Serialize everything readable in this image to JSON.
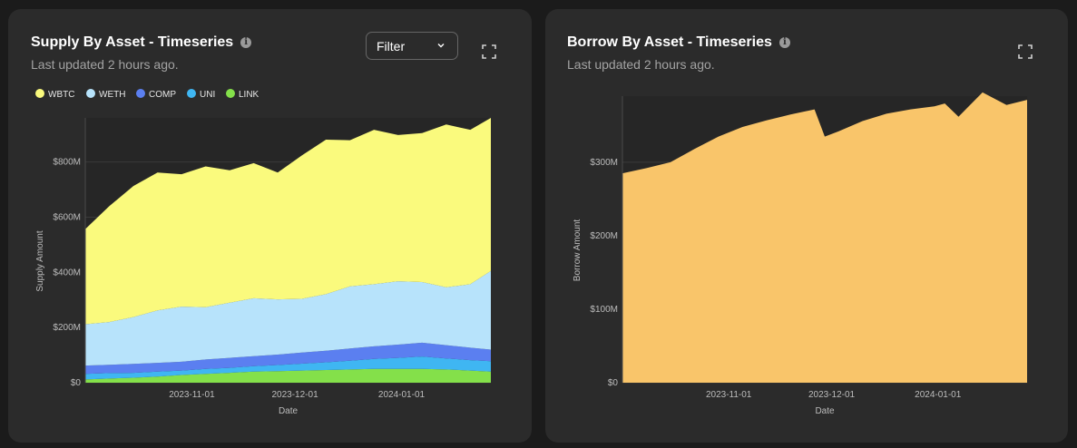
{
  "supply": {
    "title": "Supply By Asset - Timeseries",
    "subtitle": "Last updated 2 hours ago.",
    "filter_label": "Filter",
    "icons": {
      "info": "info-icon",
      "expand": "expand-icon",
      "filter_chevron": "chevron-down-icon"
    }
  },
  "borrow": {
    "title": "Borrow By Asset - Timeseries",
    "subtitle": "Last updated 2 hours ago.",
    "icons": {
      "info": "info-icon",
      "expand": "expand-icon"
    }
  },
  "chart_data": [
    {
      "type": "area",
      "stacked": true,
      "title": "Supply By Asset - Timeseries",
      "xlabel": "Date",
      "ylabel": "Supply Amount",
      "ylim": [
        0,
        960
      ],
      "y_unit": "M",
      "yticks": [
        0,
        200,
        400,
        600,
        800
      ],
      "ytick_labels": [
        "$0",
        "$200M",
        "$400M",
        "$600M",
        "$800M"
      ],
      "xticks": [
        "2023-11-01",
        "2023-12-01",
        "2024-01-01"
      ],
      "x_start": "2023-10-01",
      "x_end": "2024-01-27",
      "grid": true,
      "legend": "top-left",
      "x": [
        "2023-10-01",
        "2023-10-08",
        "2023-10-15",
        "2023-10-22",
        "2023-10-29",
        "2023-11-05",
        "2023-11-12",
        "2023-11-19",
        "2023-11-26",
        "2023-12-03",
        "2023-12-10",
        "2023-12-17",
        "2023-12-24",
        "2023-12-31",
        "2024-01-07",
        "2024-01-14",
        "2024-01-21",
        "2024-01-27"
      ],
      "series": [
        {
          "name": "LINK",
          "color": "#84e04a",
          "values": [
            12,
            15,
            18,
            22,
            28,
            32,
            36,
            40,
            42,
            44,
            46,
            48,
            50,
            50,
            50,
            48,
            44,
            40
          ]
        },
        {
          "name": "UNI",
          "color": "#3fb6f2",
          "values": [
            20,
            20,
            18,
            18,
            16,
            18,
            18,
            20,
            22,
            25,
            28,
            32,
            36,
            40,
            45,
            40,
            38,
            38
          ]
        },
        {
          "name": "COMP",
          "color": "#5b7ff0",
          "values": [
            30,
            30,
            32,
            32,
            32,
            34,
            36,
            36,
            38,
            40,
            42,
            44,
            46,
            48,
            50,
            48,
            45,
            42
          ]
        },
        {
          "name": "WETH",
          "color": "#b7e3fb",
          "values": [
            150,
            155,
            170,
            190,
            200,
            190,
            200,
            210,
            200,
            195,
            205,
            225,
            225,
            230,
            220,
            210,
            230,
            285
          ]
        },
        {
          "name": "WBTC",
          "color": "#fafa7d",
          "values": [
            345,
            420,
            475,
            500,
            480,
            510,
            480,
            490,
            460,
            520,
            560,
            530,
            560,
            530,
            540,
            590,
            560,
            555
          ]
        }
      ]
    },
    {
      "type": "area",
      "title": "Borrow By Asset - Timeseries",
      "xlabel": "Date",
      "ylabel": "Borrow Amount",
      "ylim": [
        0,
        390
      ],
      "y_unit": "M",
      "yticks": [
        0,
        100,
        200,
        300
      ],
      "ytick_labels": [
        "$0",
        "$100M",
        "$200M",
        "$300M"
      ],
      "xticks": [
        "2023-11-01",
        "2023-12-01",
        "2024-01-01"
      ],
      "x_start": "2023-10-01",
      "x_end": "2024-01-27",
      "grid": true,
      "x": [
        "2023-10-01",
        "2023-10-08",
        "2023-10-15",
        "2023-10-22",
        "2023-10-29",
        "2023-11-05",
        "2023-11-12",
        "2023-11-19",
        "2023-11-26",
        "2023-11-29",
        "2023-12-03",
        "2023-12-10",
        "2023-12-17",
        "2023-12-24",
        "2023-12-31",
        "2024-01-03",
        "2024-01-07",
        "2024-01-10",
        "2024-01-14",
        "2024-01-21",
        "2024-01-27"
      ],
      "series": [
        {
          "name": "",
          "color": "#f9c56a",
          "values": [
            285,
            292,
            300,
            318,
            335,
            348,
            357,
            365,
            372,
            335,
            342,
            356,
            366,
            372,
            376,
            380,
            362,
            376,
            395,
            378,
            385
          ]
        }
      ]
    }
  ]
}
